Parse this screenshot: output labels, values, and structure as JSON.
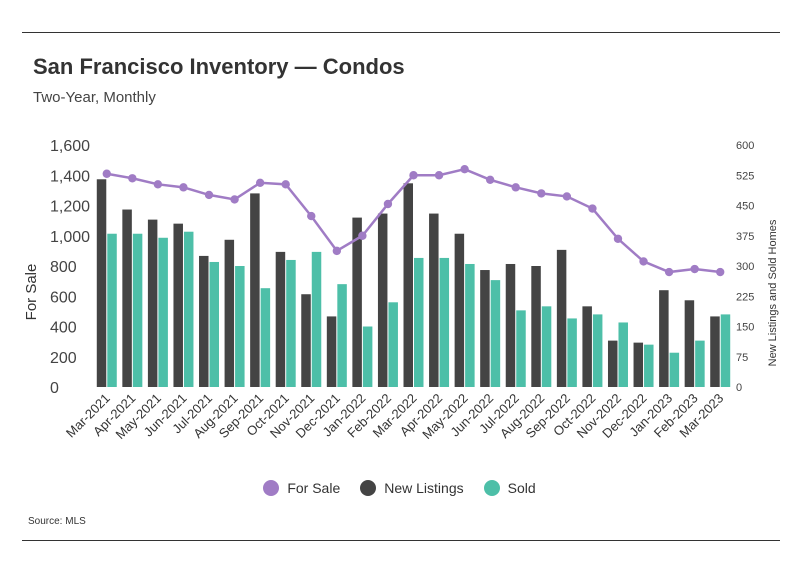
{
  "header": {
    "title": "San Francisco Inventory — Condos",
    "subtitle": "Two-Year, Monthly"
  },
  "footer": {
    "source": "Source:  MLS"
  },
  "colors": {
    "for_sale": "#a07cc5",
    "new_listings": "#444444",
    "sold": "#4dbfa8"
  },
  "chart_data": {
    "type": "bar",
    "title": "San Francisco Inventory — Condos",
    "subtitle": "Two-Year, Monthly",
    "categories": [
      "Mar-2021",
      "Apr-2021",
      "May-2021",
      "Jun-2021",
      "Jul-2021",
      "Aug-2021",
      "Sep-2021",
      "Oct-2021",
      "Nov-2021",
      "Dec-2021",
      "Jan-2022",
      "Feb-2022",
      "Mar-2022",
      "Apr-2022",
      "May-2022",
      "Jun-2022",
      "Jul-2022",
      "Aug-2022",
      "Sep-2022",
      "Oct-2022",
      "Nov-2022",
      "Dec-2022",
      "Jan-2023",
      "Feb-2023",
      "Mar-2023"
    ],
    "ylabel_left": "For Sale",
    "ylabel_right": "New Listings and Sold Homes",
    "yleft_lim": [
      0,
      1600
    ],
    "yleft_ticks": [
      "0",
      "200",
      "400",
      "600",
      "800",
      "1,000",
      "1,200",
      "1,400",
      "1,600"
    ],
    "yright_lim": [
      0,
      600
    ],
    "yright_ticks": [
      "0",
      "75",
      "150",
      "225",
      "300",
      "375",
      "450",
      "525",
      "600"
    ],
    "grid": false,
    "legend_position": "bottom",
    "series": [
      {
        "name": "For Sale",
        "type": "line",
        "axis": "left",
        "values": [
          1410,
          1380,
          1340,
          1320,
          1270,
          1240,
          1350,
          1340,
          1130,
          900,
          1000,
          1210,
          1400,
          1400,
          1440,
          1370,
          1320,
          1280,
          1260,
          1180,
          980,
          830,
          760,
          780,
          760
        ]
      },
      {
        "name": "New Listings",
        "type": "bar",
        "axis": "right",
        "values": [
          515,
          440,
          415,
          405,
          325,
          365,
          480,
          335,
          230,
          175,
          420,
          430,
          505,
          430,
          380,
          290,
          305,
          300,
          340,
          200,
          115,
          110,
          240,
          215,
          175
        ]
      },
      {
        "name": "Sold",
        "type": "bar",
        "axis": "right",
        "values": [
          380,
          380,
          370,
          385,
          310,
          300,
          245,
          315,
          335,
          255,
          150,
          210,
          320,
          320,
          305,
          265,
          190,
          200,
          170,
          180,
          160,
          105,
          85,
          115,
          180
        ]
      }
    ]
  }
}
